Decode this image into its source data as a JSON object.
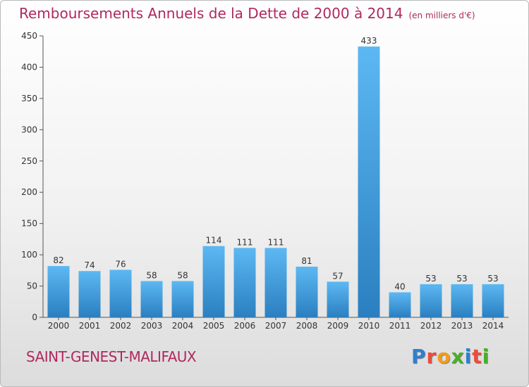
{
  "header": {
    "title": "Remboursements Annuels de la Dette de 2000 à 2014",
    "unit": "(en milliers d'€)"
  },
  "commune": "SAINT-GENEST-MALIFAUX",
  "brand": {
    "letters": [
      "P",
      "r",
      "o",
      "x",
      "i",
      "t",
      "i"
    ],
    "colors": [
      "#2f7fd0",
      "#e84e3c",
      "#f29b1d",
      "#4caf2b",
      "#2f7fd0",
      "#e84e3c",
      "#4caf2b"
    ]
  },
  "colors": {
    "bar_top": "#5cb8f2",
    "bar_bottom": "#2b7fc0",
    "title": "#b0285f"
  },
  "chart_data": {
    "type": "bar",
    "categories": [
      "2000",
      "2001",
      "2002",
      "2003",
      "2004",
      "2005",
      "2006",
      "2007",
      "2008",
      "2009",
      "2010",
      "2011",
      "2012",
      "2013",
      "2014"
    ],
    "values": [
      82,
      74,
      76,
      58,
      58,
      114,
      111,
      111,
      81,
      57,
      433,
      40,
      53,
      53,
      53
    ],
    "ylim": [
      0,
      450
    ],
    "yticks": [
      0,
      50,
      100,
      150,
      200,
      250,
      300,
      350,
      400,
      450
    ],
    "grid": false
  }
}
